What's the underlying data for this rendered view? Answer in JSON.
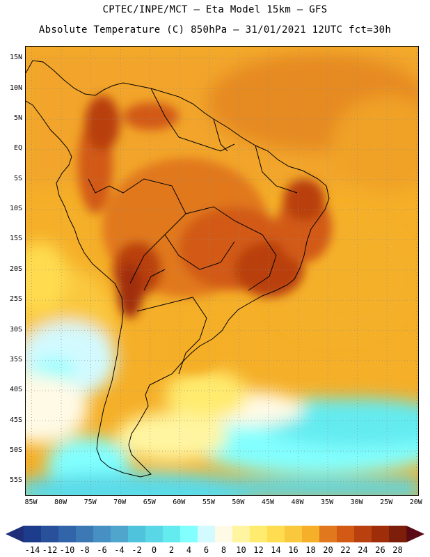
{
  "header": {
    "line1": "CPTEC/INPE/MCT –  Eta Model 15km – GFS",
    "line2": "Absolute Temperature (C) 850hPa – 31/01/2021 12UTC fct=30h"
  },
  "axes": {
    "lat_labels": [
      "15N",
      "10N",
      "5N",
      "EQ",
      "5S",
      "10S",
      "15S",
      "20S",
      "25S",
      "30S",
      "35S",
      "40S",
      "45S",
      "50S",
      "55S"
    ],
    "lat_values": [
      15,
      10,
      5,
      0,
      -5,
      -10,
      -15,
      -20,
      -25,
      -30,
      -35,
      -40,
      -45,
      -50,
      -55
    ],
    "lon_labels": [
      "85W",
      "80W",
      "75W",
      "70W",
      "65W",
      "60W",
      "55W",
      "50W",
      "45W",
      "40W",
      "35W",
      "30W",
      "25W",
      "20W"
    ],
    "lon_values": [
      -85,
      -80,
      -75,
      -70,
      -65,
      -60,
      -55,
      -50,
      -45,
      -40,
      -35,
      -30,
      -25,
      -20
    ],
    "lat_range": [
      -57.5,
      17
    ],
    "lon_range": [
      -86,
      -19.5
    ],
    "grid": "dotted"
  },
  "colorbar": {
    "labels": [
      "-14",
      "-12",
      "-10",
      "-8",
      "-6",
      "-4",
      "-2",
      "0",
      "2",
      "4",
      "6",
      "8",
      "10",
      "12",
      "14",
      "16",
      "18",
      "20",
      "22",
      "24",
      "26",
      "28"
    ],
    "colors": [
      "#1e3c8c",
      "#28509b",
      "#3264aa",
      "#3c78b4",
      "#4690c3",
      "#50a5cd",
      "#50c3dc",
      "#5ad7e6",
      "#64ebf0",
      "#82ffff",
      "#d2faff",
      "#fffae6",
      "#fff5a0",
      "#ffeb6e",
      "#ffdc50",
      "#fac83c",
      "#f5af28",
      "#e1781e",
      "#d25a14",
      "#b9410f",
      "#a02d0a",
      "#7d1e0a"
    ],
    "low_arrow_color": "#1e2e78",
    "high_arrow_color": "#5a0a14"
  }
}
